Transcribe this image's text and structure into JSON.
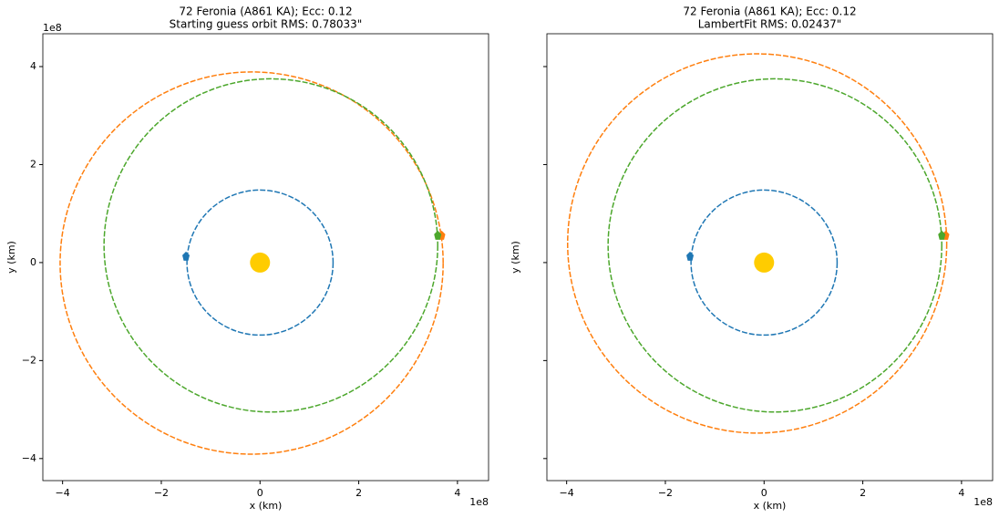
{
  "chart_data": [
    {
      "type": "orbit",
      "title": "72 Feronia (A861 KA); Ecc: 0.12",
      "subtitle": "Starting guess orbit RMS: 0.78033\"",
      "x_label": "x (km)",
      "y_label": "y (km)",
      "x_offset_label": "1e8",
      "y_offset_label": "1e8",
      "xlim": [
        -4.4,
        4.63
      ],
      "ylim": [
        -4.45,
        4.67
      ],
      "xticks": [
        {
          "value": -4,
          "label": "−4"
        },
        {
          "value": -2,
          "label": "−2"
        },
        0,
        2,
        4
      ],
      "yticks": [
        {
          "value": -4,
          "label": "−4"
        },
        {
          "value": -2,
          "label": "−2"
        },
        0,
        2,
        4
      ],
      "ytick_labels": true,
      "sun": {
        "color": "#ffcc00",
        "position": [
          0,
          0
        ]
      },
      "series": [
        {
          "color": "#1f77b4",
          "center": [
            0,
            0
          ],
          "radius": [
            1.48,
            1.48
          ],
          "marker": [
            -1.5,
            0.13
          ]
        },
        {
          "color": "#ff7f0e",
          "center": [
            -0.17,
            -0.01
          ],
          "radius": [
            3.88,
            3.9
          ],
          "marker": [
            3.68,
            0.56
          ]
        },
        {
          "color": "#4ca72c",
          "center": [
            0.22,
            0.35
          ],
          "radius": [
            3.38,
            3.4
          ],
          "marker": [
            3.6,
            0.56
          ]
        }
      ]
    },
    {
      "type": "orbit",
      "title": "72 Feronia (A861 KA); Ecc: 0.12",
      "subtitle": "LambertFit RMS: 0.02437\"",
      "x_label": "x (km)",
      "y_label": "y (km)",
      "x_offset_label": "1e8",
      "xlim": [
        -4.4,
        4.63
      ],
      "ylim": [
        -4.45,
        4.67
      ],
      "xticks": [
        {
          "value": -4,
          "label": "−4"
        },
        {
          "value": -2,
          "label": "−2"
        },
        0,
        2,
        4
      ],
      "yticks": [
        -4,
        -2,
        0,
        2,
        4
      ],
      "ytick_labels": false,
      "sun": {
        "color": "#ffcc00",
        "position": [
          0,
          0
        ]
      },
      "series": [
        {
          "color": "#1f77b4",
          "center": [
            0,
            0
          ],
          "radius": [
            1.48,
            1.48
          ],
          "marker": [
            -1.5,
            0.13
          ]
        },
        {
          "color": "#ff7f0e",
          "center": [
            -0.14,
            0.39
          ],
          "radius": [
            3.84,
            3.87
          ],
          "marker": [
            3.68,
            0.56
          ]
        },
        {
          "color": "#4ca72c",
          "center": [
            0.22,
            0.35
          ],
          "radius": [
            3.38,
            3.4
          ],
          "marker": [
            3.6,
            0.56
          ]
        }
      ]
    }
  ]
}
